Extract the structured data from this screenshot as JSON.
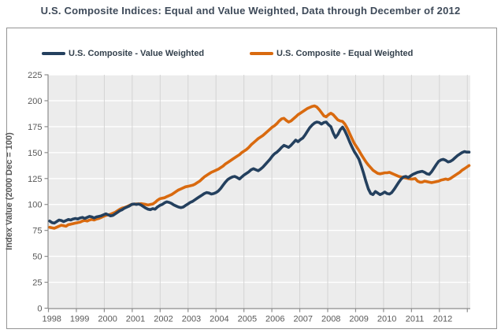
{
  "title": "U.S. Composite Indices: Equal and Value Weighted, Data through December of 2012",
  "colors": {
    "value_weighted": "#24405E",
    "equal_weighted": "#D96A0F",
    "plot_background": "#ECECEC",
    "horizontal_gridline": "#FFFFFF",
    "vertical_gridline": "#D4D4D4",
    "axis_line": "#8C8C8C",
    "tick_label": "#595959",
    "title_text": "#3E4A59",
    "box_border": "#949494"
  },
  "chart_data": {
    "type": "line",
    "title": "U.S. Composite Indices: Equal and Value Weighted, Data through December of 2012",
    "xlabel": "",
    "ylabel": "Index Value (2000 Dec = 100)",
    "x_unit": "month",
    "x_range_start": "Jan 1998",
    "x_range_end": "Dec 2012",
    "x_tick_labels": [
      "1998",
      "1999",
      "2000",
      "2001",
      "2002",
      "2003",
      "2004",
      "2005",
      "2006",
      "2007",
      "2008",
      "2009",
      "2010",
      "2011",
      "2012"
    ],
    "y_tick_labels": [
      "0",
      "25",
      "50",
      "75",
      "100",
      "125",
      "150",
      "175",
      "200",
      "225"
    ],
    "ylim": [
      0,
      225
    ],
    "ytick_step": 25,
    "grid": {
      "horizontal": true,
      "vertical": true
    },
    "legend_position": "top-inside",
    "series": [
      {
        "name": "U.S. Composite - Value Weighted",
        "color": "#24405E",
        "values": [
          84,
          82.5,
          82,
          83.5,
          85,
          84.5,
          83.5,
          84.5,
          85.5,
          85,
          86,
          86.5,
          86,
          87,
          87.5,
          86.5,
          87.5,
          88.5,
          88,
          87,
          88,
          88.5,
          89,
          90,
          91,
          90,
          89,
          89.5,
          91,
          92.5,
          94,
          95,
          96.5,
          97.5,
          98.5,
          100,
          100.5,
          100,
          100.5,
          99.5,
          98,
          96.5,
          95.5,
          95,
          96,
          95.5,
          97.5,
          99,
          100,
          101.5,
          102.5,
          102,
          101,
          99.5,
          98.5,
          97.5,
          97,
          97.5,
          99,
          100.5,
          102,
          103,
          104.5,
          106,
          107.5,
          109,
          110.5,
          111.5,
          111,
          110,
          110.5,
          111.5,
          113,
          115.5,
          118.5,
          121.5,
          124,
          125.5,
          126.5,
          127,
          126,
          124.5,
          126.5,
          128.5,
          130,
          131.5,
          133.5,
          134.5,
          133.5,
          132.5,
          134,
          136,
          138.5,
          141,
          143.5,
          146.5,
          149,
          150.5,
          152.5,
          155,
          157,
          156,
          155,
          157,
          159.5,
          162,
          160.5,
          162.5,
          164,
          167,
          170.5,
          174,
          176.5,
          178.5,
          179.5,
          179,
          177.5,
          179,
          179.5,
          177,
          175,
          169,
          164.5,
          167.5,
          172,
          174.5,
          171,
          166,
          160.5,
          155.5,
          151,
          147.5,
          143.5,
          137,
          130,
          122,
          115,
          110.5,
          109.5,
          112.5,
          111,
          109.5,
          110.5,
          112,
          110.5,
          110,
          111.5,
          114.5,
          118,
          121.5,
          124.5,
          126.5,
          127,
          126,
          127.5,
          129,
          130,
          131,
          131.5,
          132,
          131,
          129.5,
          129,
          131.5,
          135,
          138.5,
          141.5,
          143,
          143.5,
          142.5,
          141,
          141.5,
          143,
          145,
          147,
          148.5,
          150,
          151,
          150.5,
          150.5
        ]
      },
      {
        "name": "U.S. Composite - Equal Weighted",
        "color": "#D96A0F",
        "values": [
          78,
          77.5,
          77,
          78,
          79,
          80,
          79.5,
          79,
          80.5,
          81,
          81.5,
          82,
          82.5,
          83,
          84,
          84.5,
          84,
          85,
          85.5,
          85,
          86,
          86.5,
          87.5,
          88.5,
          89.5,
          90,
          90.5,
          91.5,
          92.5,
          94,
          95.5,
          96.5,
          97,
          98,
          99,
          100,
          100.3,
          100.5,
          100.5,
          100.8,
          100.5,
          100,
          99.5,
          100,
          100.5,
          102,
          104,
          105.5,
          106,
          106.5,
          107.5,
          108.5,
          109.5,
          111,
          112.5,
          114,
          115,
          116,
          117,
          117.5,
          118,
          118.5,
          119.5,
          121,
          122.5,
          124.5,
          126.5,
          128,
          129.5,
          131,
          132,
          133,
          134,
          135.5,
          137,
          139,
          140.5,
          142,
          143.5,
          145,
          146.5,
          148,
          150,
          151.5,
          153,
          155,
          157.5,
          159.5,
          161.5,
          163.5,
          165,
          166.5,
          168.5,
          170.5,
          172.5,
          174.5,
          176,
          178,
          180.5,
          182.5,
          183,
          181,
          179.5,
          180.5,
          182.5,
          184.5,
          186.5,
          188,
          189.5,
          191,
          192.5,
          193.5,
          194.5,
          195,
          194,
          191.5,
          188.5,
          185.5,
          184.5,
          186.5,
          188,
          186.5,
          184,
          181.5,
          180.5,
          180,
          177.5,
          173.5,
          168.5,
          163.5,
          159,
          155.5,
          152,
          148,
          144.5,
          141,
          138,
          135.5,
          133,
          131.5,
          130,
          129.5,
          130,
          130.5,
          130.5,
          131,
          130,
          129,
          128,
          127,
          126.5,
          126,
          125.5,
          125,
          124.5,
          124.5,
          125,
          122.5,
          121.5,
          121.5,
          122.5,
          122,
          121.5,
          121,
          121.5,
          122,
          122.5,
          123.5,
          124,
          124.5,
          124,
          125,
          126.5,
          128,
          129.5,
          131,
          133,
          134.5,
          136,
          137.5
        ]
      }
    ]
  }
}
